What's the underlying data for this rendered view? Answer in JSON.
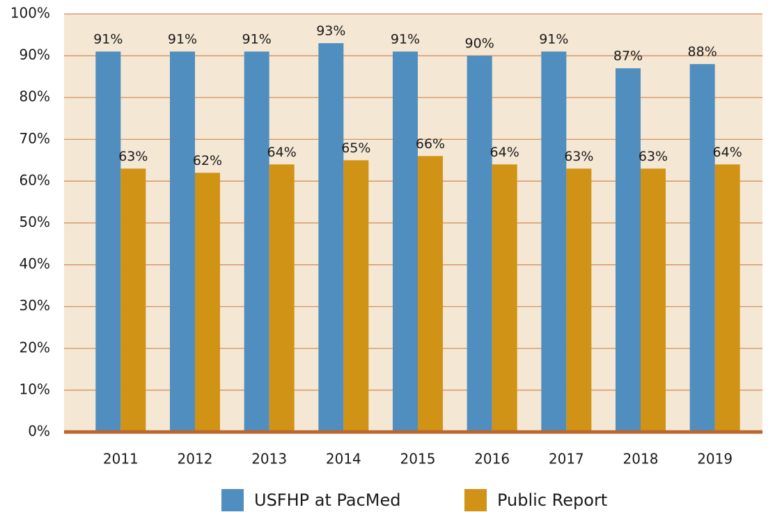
{
  "chart_data": {
    "type": "bar",
    "categories": [
      "2011",
      "2012",
      "2013",
      "2014",
      "2015",
      "2016",
      "2017",
      "2018",
      "2019"
    ],
    "series": [
      {
        "name": "USFHP at PacMed",
        "color": "#4f8ebe",
        "values": [
          91,
          91,
          91,
          93,
          91,
          90,
          91,
          87,
          88
        ],
        "value_labels": [
          "91%",
          "91%",
          "91%",
          "93%",
          "91%",
          "90%",
          "91%",
          "87%",
          "88%"
        ]
      },
      {
        "name": "Public Report",
        "color": "#d09315",
        "values": [
          63,
          62,
          64,
          65,
          66,
          64,
          63,
          63,
          64
        ],
        "value_labels": [
          "63%",
          "62%",
          "64%",
          "65%",
          "66%",
          "64%",
          "63%",
          "63%",
          "64%"
        ]
      }
    ],
    "ylim": [
      0,
      100
    ],
    "yticks": [
      {
        "value": 0,
        "label": "0%"
      },
      {
        "value": 10,
        "label": "10%"
      },
      {
        "value": 20,
        "label": "20%"
      },
      {
        "value": 30,
        "label": "30%"
      },
      {
        "value": 40,
        "label": "40%"
      },
      {
        "value": 50,
        "label": "50%"
      },
      {
        "value": 60,
        "label": "60%"
      },
      {
        "value": 70,
        "label": "70%"
      },
      {
        "value": 80,
        "label": "80%"
      },
      {
        "value": 90,
        "label": "90%"
      },
      {
        "value": 100,
        "label": "100%"
      }
    ],
    "grid": true,
    "legend": "bottom"
  }
}
